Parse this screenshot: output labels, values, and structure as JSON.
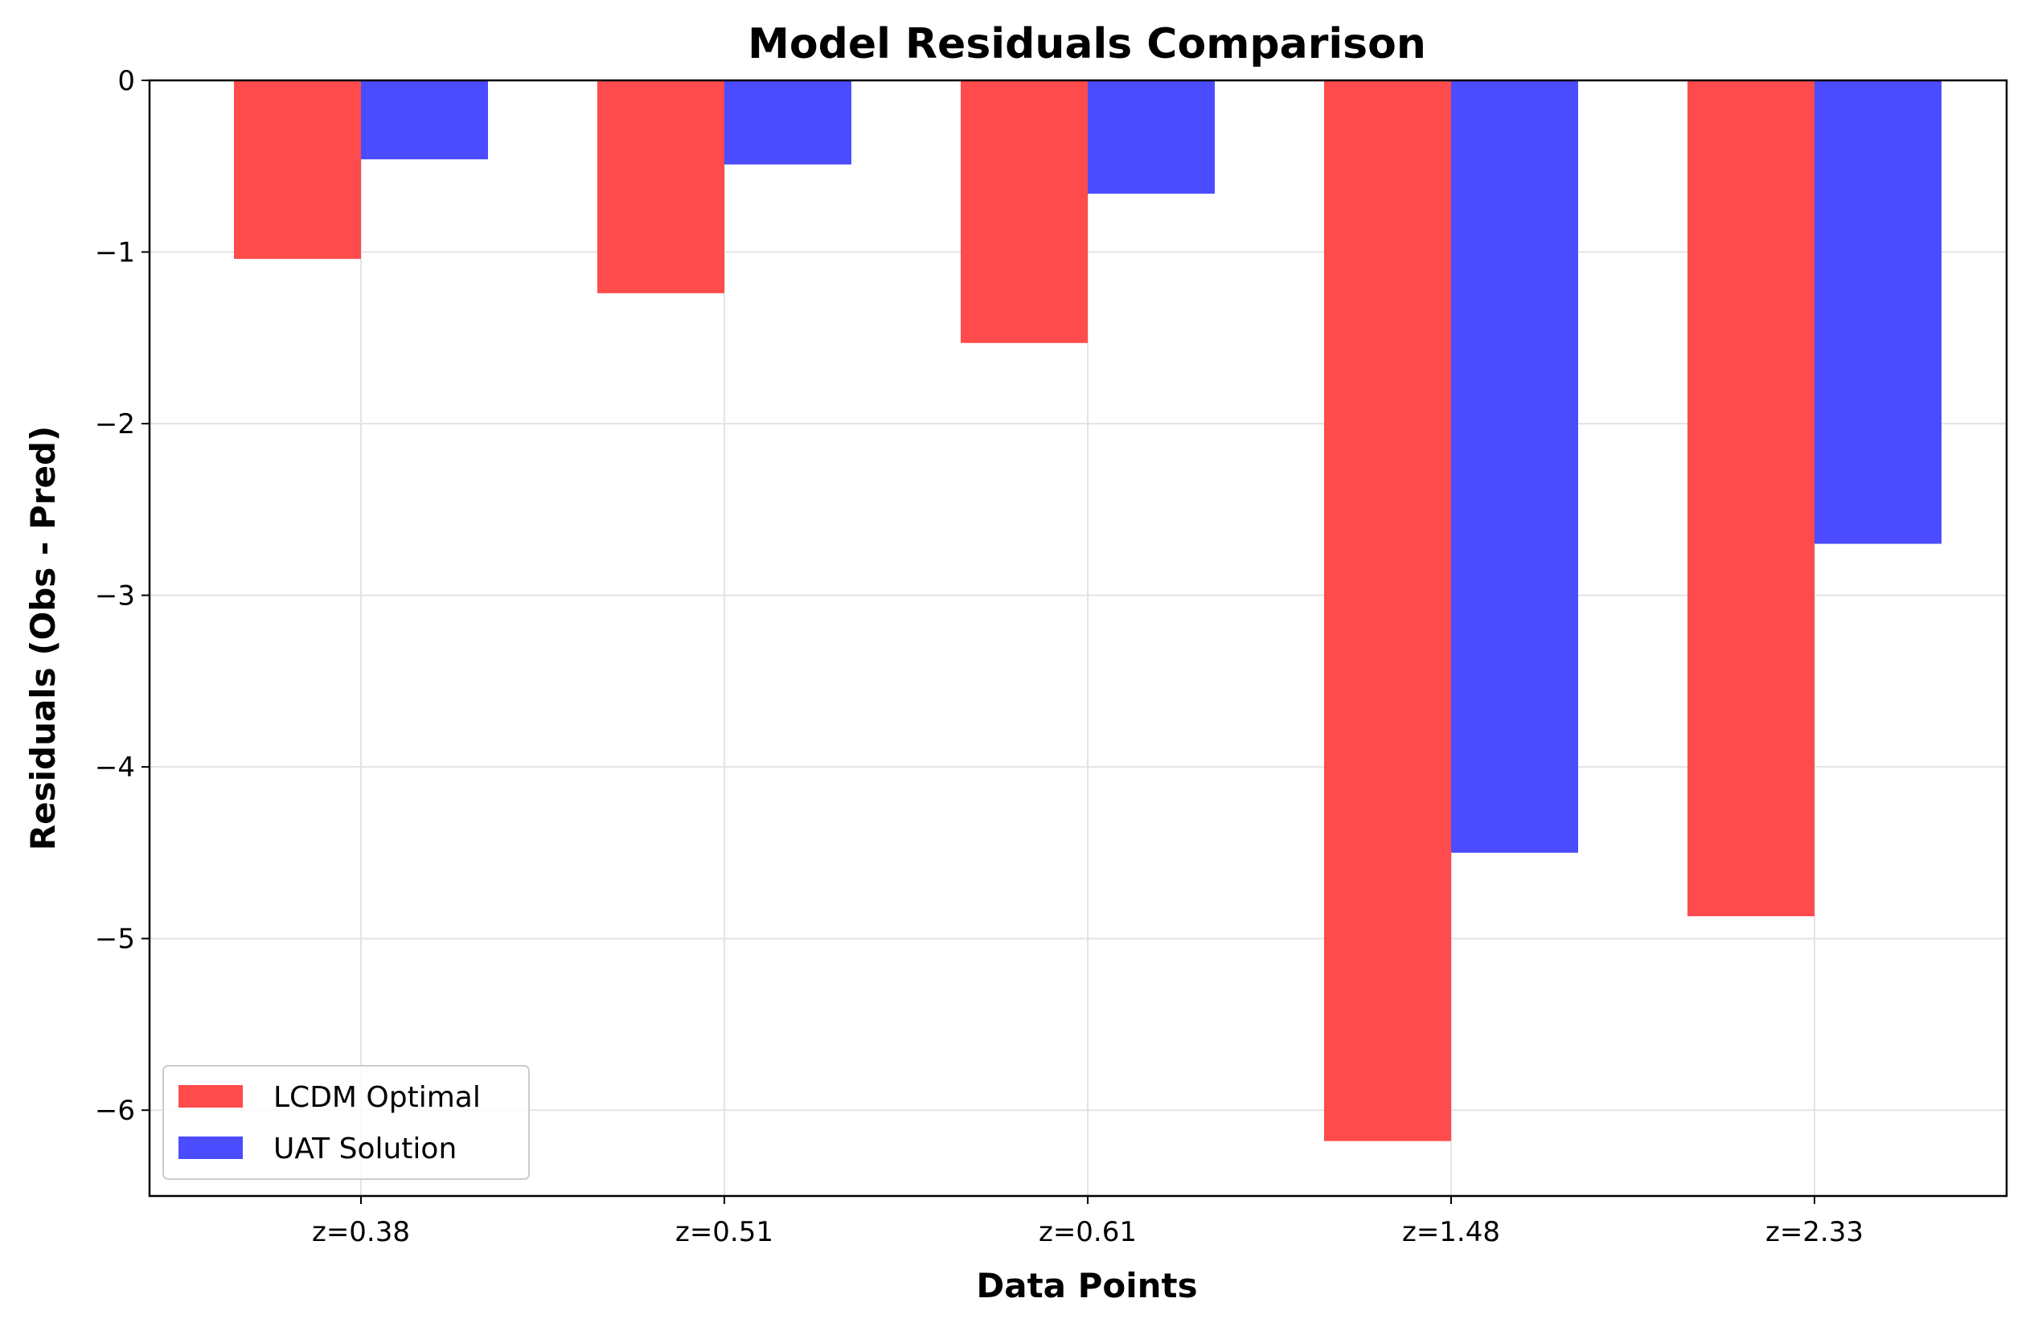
{
  "chart_data": {
    "type": "bar",
    "title": "Model Residuals Comparison",
    "xlabel": "Data Points",
    "ylabel": "Residuals (Obs - Pred)",
    "categories": [
      "z=0.38",
      "z=0.51",
      "z=0.61",
      "z=1.48",
      "z=2.33"
    ],
    "series": [
      {
        "name": "LCDM Optimal",
        "color": "#ff4b4b",
        "values": [
          -1.04,
          -1.24,
          -1.53,
          -6.18,
          -4.87
        ]
      },
      {
        "name": "UAT Solution",
        "color": "#4b4bff",
        "values": [
          -0.46,
          -0.49,
          -0.66,
          -4.5,
          -2.7
        ]
      }
    ],
    "ylim": [
      -6.5,
      0
    ],
    "yticks": [
      0,
      -1,
      -2,
      -3,
      -4,
      -5,
      -6
    ],
    "ytick_labels": [
      "0",
      "−1",
      "−2",
      "−3",
      "−4",
      "−5",
      "−6"
    ],
    "grid": true,
    "legend_position": "lower-left"
  }
}
